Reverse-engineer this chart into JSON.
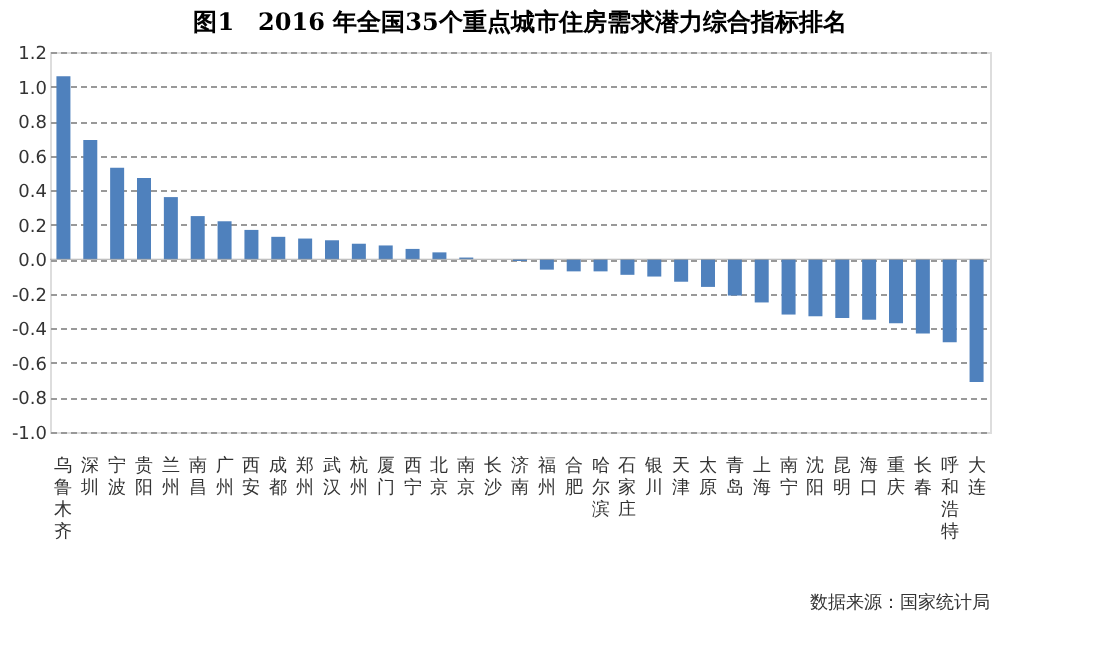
{
  "chart_data": {
    "type": "bar",
    "title": "图1　2016 年全国35个重点城市住房需求潜力综合指标排名",
    "categories": [
      "乌鲁木齐",
      "深圳",
      "宁波",
      "贵阳",
      "兰州",
      "南昌",
      "广州",
      "西安",
      "成都",
      "郑州",
      "武汉",
      "杭州",
      "厦门",
      "西宁",
      "北京",
      "南京",
      "长沙",
      "济南",
      "福州",
      "合肥",
      "哈尔滨",
      "石家庄",
      "银川",
      "天津",
      "太原",
      "青岛",
      "上海",
      "南宁",
      "沈阳",
      "昆明",
      "海口",
      "重庆",
      "长春",
      "呼和浩特",
      "大连"
    ],
    "values": [
      1.06,
      0.69,
      0.53,
      0.47,
      0.36,
      0.25,
      0.22,
      0.17,
      0.13,
      0.12,
      0.11,
      0.09,
      0.08,
      0.06,
      0.04,
      0.01,
      0.0,
      -0.01,
      -0.06,
      -0.07,
      -0.07,
      -0.09,
      -0.1,
      -0.13,
      -0.16,
      -0.21,
      -0.25,
      -0.32,
      -0.33,
      -0.34,
      -0.35,
      -0.37,
      -0.43,
      -0.48,
      -0.71
    ],
    "color": "#4f81bd",
    "ylim": [
      -1.0,
      1.2
    ],
    "yticks": [
      {
        "value": -1.0,
        "label": "-1.0"
      },
      {
        "value": -0.8,
        "label": "-0.8"
      },
      {
        "value": -0.6,
        "label": "-0.6"
      },
      {
        "value": -0.4,
        "label": "-0.4"
      },
      {
        "value": -0.2,
        "label": "-0.2"
      },
      {
        "value": 0,
        "label": "0.0"
      },
      {
        "value": 0.2,
        "label": "0.2"
      },
      {
        "value": 0.4,
        "label": "0.4"
      },
      {
        "value": 0.6,
        "label": "0.6"
      },
      {
        "value": 0.8,
        "label": "0.8"
      },
      {
        "value": 1.0,
        "label": "1.0"
      },
      {
        "value": 1.2,
        "label": "1.2"
      }
    ],
    "grid": "y",
    "annotations": [
      "数据来源：国家统计局"
    ]
  }
}
